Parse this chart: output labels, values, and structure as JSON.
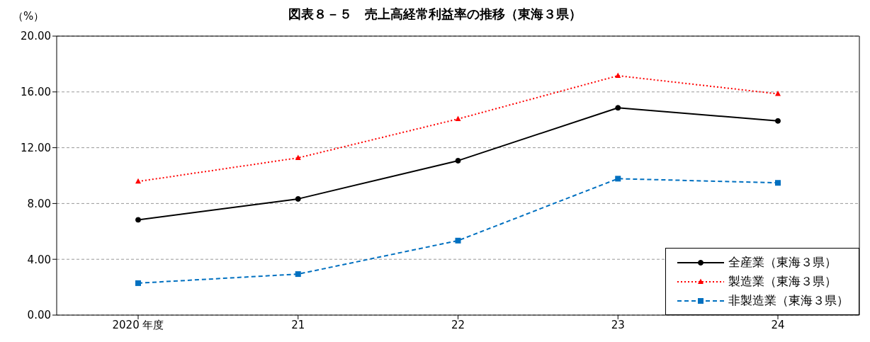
{
  "chart_data": {
    "type": "line",
    "title": "図表８－５　売上高経常利益率の推移（東海３県）",
    "ylabel": "（%）",
    "categories": [
      "2020 年度",
      "21",
      "22",
      "23",
      "24"
    ],
    "series": [
      {
        "name": "全産業（東海３県）",
        "color": "#000000",
        "marker": "circle",
        "line_style": "solid",
        "values": [
          6.83,
          8.33,
          11.07,
          14.86,
          13.92
        ]
      },
      {
        "name": "製造業（東海３県）",
        "color": "#ff0000",
        "marker": "triangle",
        "line_style": "dotted",
        "values": [
          9.58,
          11.27,
          14.06,
          17.16,
          15.86
        ]
      },
      {
        "name": "非製造業（東海３県）",
        "color": "#0070c0",
        "marker": "square",
        "line_style": "dashed",
        "values": [
          2.29,
          2.94,
          5.34,
          9.78,
          9.48
        ]
      }
    ],
    "ylim": [
      0,
      20
    ],
    "yticks": [
      {
        "value": 0,
        "label": "0.00"
      },
      {
        "value": 4,
        "label": "4.00"
      },
      {
        "value": 8,
        "label": "8.00"
      },
      {
        "value": 12,
        "label": "12.00"
      },
      {
        "value": 16,
        "label": "16.00"
      },
      {
        "value": 20,
        "label": "20.00"
      }
    ],
    "grid": "y",
    "legend": "bottom right"
  }
}
